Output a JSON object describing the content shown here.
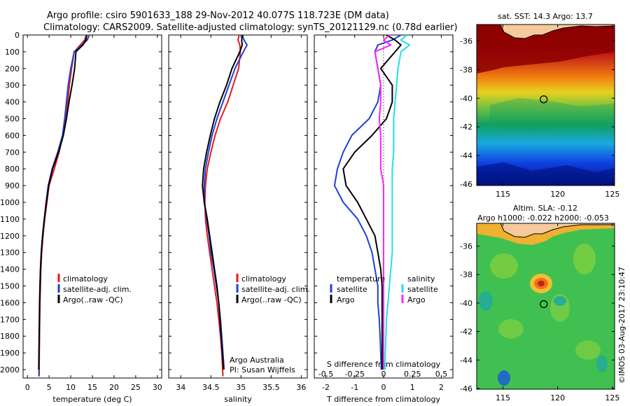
{
  "header": {
    "line1": "Argo profile: csiro 5901633_188 29-Nov-2012 40.077S 118.723E (DM data)",
    "line2": "Climatology: CARS2009. Satellite-adjusted climatology: synTS_20121129.nc (0.78d earlier)"
  },
  "colors": {
    "climatology": "#e41a1c",
    "satellite": "#1f3fd6",
    "argo": "#000000",
    "sal_satellite": "#22e0e8",
    "sal_argo": "#ff22ff"
  },
  "depth_axis": {
    "range": [
      0,
      2050
    ],
    "ticks": [
      0,
      100,
      200,
      300,
      400,
      500,
      600,
      700,
      800,
      900,
      1000,
      1100,
      1200,
      1300,
      1400,
      1500,
      1600,
      1700,
      1800,
      1900,
      2000
    ]
  },
  "panels": {
    "temperature": {
      "xlabel": "temperature (deg C)",
      "xlim": [
        -1,
        31
      ],
      "xticks": [
        0,
        5,
        10,
        15,
        20,
        25,
        30
      ],
      "legend": [
        "climatology",
        "satellite-adj. clim.",
        "Argo(..raw -QC)"
      ]
    },
    "salinity": {
      "xlabel": "salinity",
      "xlim": [
        33.8,
        36.1
      ],
      "xticks": [
        "34",
        "34.5",
        "35",
        "35.5",
        "36"
      ],
      "xtick_values": [
        34,
        34.5,
        35,
        35.5,
        36
      ],
      "legend": [
        "climatology",
        "satellite-adj. clim.",
        "Argo(..raw -QC)"
      ],
      "note1": "Argo Australia",
      "note2": "PI: Susan Wijffels"
    },
    "difference": {
      "xlabel": "T difference from climatology",
      "top_label": "S difference from climatology",
      "xlim": [
        -2.4,
        2.4
      ],
      "xticks": [
        "-2",
        "-1",
        "0",
        "1",
        "2"
      ],
      "xtick_values": [
        -2,
        -1,
        0,
        1,
        2
      ],
      "s_ticks": [
        "-0.5",
        "-0.25",
        "0",
        "0.25",
        "0.5"
      ],
      "s_tick_values": [
        -2,
        -1,
        0,
        1,
        2
      ],
      "legend_temp_title": "temperature",
      "legend_sal_title": "salinity",
      "legend_items": [
        "satellite",
        "Argo"
      ]
    }
  },
  "maps": {
    "sst": {
      "title": "sat. SST: 14.3  Argo: 13.7",
      "lat_ticks": [
        "-36",
        "-38",
        "-40",
        "-42",
        "-44",
        "-46"
      ],
      "lon_ticks": [
        "115",
        "120",
        "125"
      ]
    },
    "sla": {
      "title1": "Altim. SLA: -0.12",
      "title2": "Argo h1000: -0.022 h2000: -0.053",
      "lat_ticks": [
        "-36",
        "-38",
        "-40",
        "-42",
        "-44",
        "-46"
      ],
      "lon_ticks": [
        "115",
        "120",
        "125"
      ]
    },
    "float_position": {
      "lon": 118.723,
      "lat": -40.077
    }
  },
  "credit": "©IMOS 03-Aug-2017 23:10:47",
  "chart_data": [
    {
      "type": "line",
      "panel": "temperature",
      "xlabel": "temperature (deg C)",
      "ylabel": "",
      "xlim": [
        -1,
        31
      ],
      "ylim": [
        2050,
        0
      ],
      "series": [
        {
          "name": "climatology",
          "x": [
            13.6,
            13.2,
            12.2,
            10.8,
            10.2,
            9.7,
            9.3,
            8.9,
            8.2,
            7.3,
            6.2,
            5.0,
            4.5,
            4.0,
            3.6,
            3.3,
            3.1,
            3.0,
            2.9,
            2.85,
            2.8,
            2.75,
            2.7
          ],
          "y": [
            0,
            30,
            60,
            100,
            200,
            300,
            400,
            500,
            600,
            700,
            800,
            900,
            1000,
            1100,
            1200,
            1300,
            1400,
            1500,
            1600,
            1700,
            1800,
            1900,
            2040
          ]
        },
        {
          "name": "satellite-adj. clim.",
          "x": [
            14.3,
            13.8,
            12.6,
            10.8,
            10.0,
            9.4,
            9.0,
            8.6,
            8.1,
            7.0,
            5.7,
            4.8,
            4.3,
            3.9,
            3.5,
            3.2,
            3.0,
            2.9,
            2.85,
            2.8,
            2.75,
            2.7,
            2.65
          ],
          "y": [
            0,
            30,
            60,
            100,
            200,
            300,
            400,
            500,
            600,
            700,
            800,
            900,
            1000,
            1100,
            1200,
            1300,
            1400,
            1500,
            1600,
            1700,
            1800,
            1900,
            2040
          ]
        },
        {
          "name": "Argo(..raw -QC)",
          "x": [
            13.7,
            13.5,
            12.8,
            11.2,
            10.9,
            10.3,
            9.6,
            9.0,
            8.3,
            7.2,
            5.8,
            4.9,
            4.4,
            3.9,
            3.5,
            3.2,
            3.0,
            2.9,
            2.8,
            2.75,
            2.7,
            2.65,
            2.6
          ],
          "y": [
            0,
            30,
            60,
            100,
            200,
            300,
            400,
            500,
            600,
            700,
            800,
            900,
            1000,
            1100,
            1200,
            1300,
            1400,
            1500,
            1600,
            1700,
            1800,
            1900,
            2000
          ]
        }
      ]
    },
    {
      "type": "line",
      "panel": "salinity",
      "xlabel": "salinity",
      "ylabel": "",
      "xlim": [
        33.8,
        36.1
      ],
      "ylim": [
        2050,
        0
      ],
      "series": [
        {
          "name": "climatology",
          "x": [
            34.97,
            34.95,
            34.98,
            34.99,
            34.96,
            34.87,
            34.78,
            34.66,
            34.57,
            34.5,
            34.44,
            34.41,
            34.4,
            34.41,
            34.44,
            34.48,
            34.52,
            34.56,
            34.6,
            34.63,
            34.66,
            34.68,
            34.7
          ],
          "y": [
            0,
            30,
            60,
            100,
            200,
            300,
            400,
            500,
            600,
            700,
            800,
            900,
            1000,
            1100,
            1200,
            1300,
            1400,
            1500,
            1600,
            1700,
            1800,
            1900,
            2040
          ]
        },
        {
          "name": "satellite-adj. clim.",
          "x": [
            35.02,
            35.05,
            35.1,
            35.04,
            34.9,
            34.8,
            34.7,
            34.6,
            34.52,
            34.46,
            34.41,
            34.39,
            34.39,
            34.43,
            34.47,
            34.5,
            34.55,
            34.59,
            34.63,
            34.66,
            34.68,
            34.7,
            34.72
          ],
          "y": [
            0,
            30,
            60,
            100,
            200,
            300,
            400,
            500,
            600,
            700,
            800,
            900,
            1000,
            1100,
            1200,
            1300,
            1400,
            1500,
            1600,
            1700,
            1800,
            1900,
            2000
          ]
        },
        {
          "name": "Argo(..raw -QC)",
          "x": [
            35.03,
            35.01,
            35.02,
            34.98,
            34.85,
            34.76,
            34.65,
            34.56,
            34.49,
            34.43,
            34.38,
            34.36,
            34.39,
            34.44,
            34.48,
            34.52,
            34.56,
            34.6,
            34.63,
            34.65,
            34.67,
            34.69,
            34.71
          ],
          "y": [
            0,
            30,
            60,
            100,
            200,
            300,
            400,
            500,
            600,
            700,
            800,
            900,
            1000,
            1100,
            1200,
            1300,
            1400,
            1500,
            1600,
            1700,
            1800,
            1900,
            2000
          ]
        }
      ]
    },
    {
      "type": "line",
      "panel": "difference",
      "xlabel": "T difference from climatology",
      "ylabel": "",
      "xlim": [
        -2.4,
        2.4
      ],
      "ylim": [
        2050,
        0
      ],
      "series": [
        {
          "name": "temperature satellite",
          "x": [
            0.6,
            0.3,
            -0.2,
            -0.3,
            -0.2,
            -0.1,
            -0.2,
            -0.5,
            -1.1,
            -1.4,
            -1.6,
            -1.7,
            -1.4,
            -0.9,
            -0.6,
            -0.4,
            -0.3,
            -0.2,
            -0.2,
            -0.15,
            -0.12,
            -0.1,
            -0.08
          ],
          "y": [
            0,
            30,
            60,
            100,
            200,
            300,
            400,
            500,
            600,
            700,
            800,
            900,
            1000,
            1100,
            1200,
            1300,
            1400,
            1500,
            1600,
            1700,
            1800,
            1900,
            2000
          ]
        },
        {
          "name": "temperature Argo",
          "x": [
            0.1,
            0.4,
            0.6,
            0.4,
            -0.1,
            0.3,
            0.3,
            0.1,
            -0.4,
            -1.0,
            -1.4,
            -1.3,
            -0.9,
            -0.6,
            -0.3,
            -0.2,
            -0.1,
            -0.05,
            -0.05,
            -0.05,
            -0.05,
            -0.05,
            -0.05
          ],
          "y": [
            0,
            30,
            60,
            100,
            200,
            300,
            400,
            500,
            600,
            700,
            800,
            900,
            1000,
            1100,
            1200,
            1300,
            1400,
            1500,
            1600,
            1700,
            1800,
            1900,
            2000
          ]
        },
        {
          "name": "salinity satellite",
          "x": [
            0.8,
            0.6,
            0.9,
            0.6,
            0.5,
            0.45,
            0.4,
            0.35,
            0.35,
            0.35,
            0.3,
            0.3,
            0.3,
            0.3,
            0.3,
            0.3,
            0.25,
            0.2,
            0.15,
            0.1,
            0.08,
            0.06,
            0.05
          ],
          "y": [
            0,
            30,
            60,
            100,
            200,
            300,
            400,
            500,
            600,
            700,
            800,
            900,
            1000,
            1100,
            1200,
            1300,
            1400,
            1500,
            1600,
            1700,
            1800,
            1900,
            2000
          ]
        },
        {
          "name": "salinity Argo",
          "x": [
            0.2,
            0.0,
            0.25,
            -0.3,
            -0.2,
            -0.1,
            -0.1,
            -0.15,
            -0.1,
            -0.1,
            -0.1,
            0.0,
            0.0,
            0.0,
            0.0,
            0.0,
            0.0,
            0.0,
            0.0,
            0.0,
            0.0,
            0.0,
            0.0
          ],
          "y": [
            0,
            30,
            60,
            100,
            200,
            300,
            400,
            500,
            600,
            700,
            800,
            900,
            1000,
            1100,
            1200,
            1300,
            1400,
            1500,
            1600,
            1700,
            1800,
            1900,
            2000
          ]
        }
      ]
    }
  ]
}
